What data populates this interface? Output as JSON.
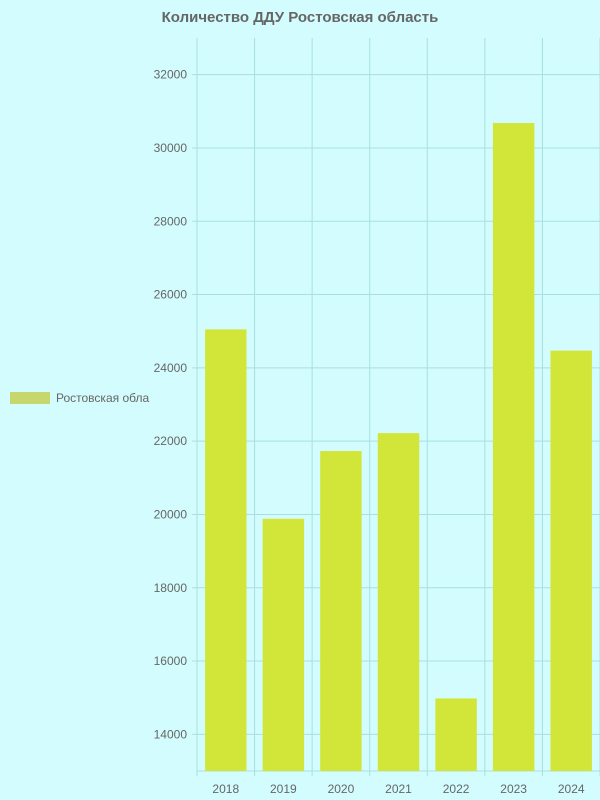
{
  "chart_data": {
    "type": "bar",
    "title": "Количество ДДУ Ростовская область",
    "xlabel": "",
    "ylabel": "",
    "categories": [
      "2018",
      "2019",
      "2020",
      "2021",
      "2022",
      "2023",
      "2024"
    ],
    "series": [
      {
        "name": "Ростовская обла",
        "values": [
          25050,
          19880,
          21730,
          22220,
          14980,
          30680,
          24470
        ],
        "color": "#d2e63a"
      }
    ],
    "ylim": [
      13000,
      33000
    ],
    "yticks": [
      14000,
      16000,
      18000,
      20000,
      22000,
      24000,
      26000,
      28000,
      30000,
      32000
    ],
    "grid": true,
    "legend_position": "left",
    "colors": {
      "background": "#d2fcfd",
      "bar": "#d2e63a",
      "legend_swatch": "#c6d76e",
      "grid": "#a9dfe0",
      "text": "#666666"
    }
  }
}
